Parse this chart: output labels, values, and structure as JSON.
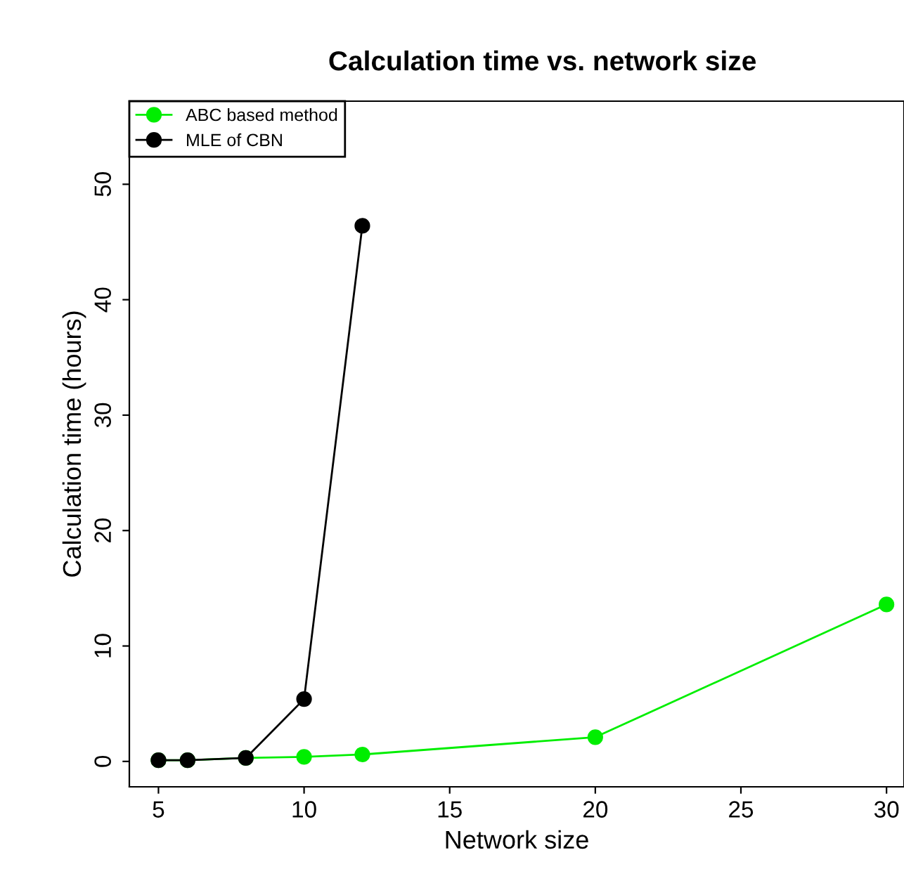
{
  "chart_data": {
    "type": "line",
    "title": "Calculation time vs. network size",
    "xlabel": "Network size",
    "ylabel": "Calculation time (hours)",
    "series": [
      {
        "name": "ABC based method",
        "color": "#00ee00",
        "x": [
          5,
          6,
          8,
          10,
          12,
          20,
          30
        ],
        "values": [
          0.1,
          0.1,
          0.3,
          0.4,
          0.6,
          2.1,
          13.6
        ]
      },
      {
        "name": "MLE of CBN",
        "color": "#000000",
        "x": [
          5,
          6,
          8,
          10,
          12
        ],
        "values": [
          0.1,
          0.1,
          0.3,
          5.4,
          46.4
        ]
      }
    ],
    "xlim": [
      4,
      30.6
    ],
    "xticks": [
      5,
      10,
      15,
      20,
      25,
      30
    ],
    "ylim": [
      -2.2,
      57.2
    ],
    "yticks": [
      0,
      10,
      20,
      30,
      40,
      50
    ],
    "grid": false,
    "legend": "top left",
    "marker": "circle",
    "line_style": "solid"
  }
}
